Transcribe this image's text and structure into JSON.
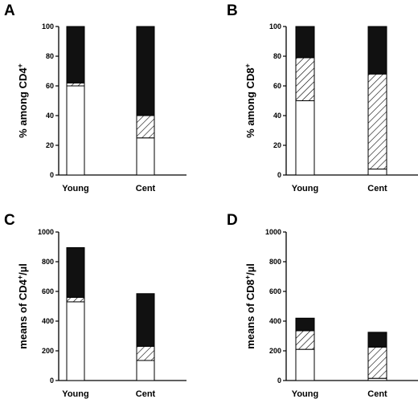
{
  "chart_data": [
    {
      "panel": "A",
      "type": "bar",
      "stacked": true,
      "categories": [
        "Young",
        "Cent"
      ],
      "ylabel": {
        "text": "% among CD4",
        "sup": "+"
      },
      "ylim": [
        0,
        100
      ],
      "yticks": [
        0,
        20,
        40,
        60,
        80,
        100
      ],
      "series": [
        {
          "pattern": "white",
          "values": [
            60,
            25
          ]
        },
        {
          "pattern": "hatched",
          "values": [
            2,
            15
          ]
        },
        {
          "pattern": "black",
          "values": [
            38,
            60
          ]
        }
      ]
    },
    {
      "panel": "B",
      "type": "bar",
      "stacked": true,
      "categories": [
        "Young",
        "Cent"
      ],
      "ylabel": {
        "text": "% among CD8",
        "sup": "+"
      },
      "ylim": [
        0,
        100
      ],
      "yticks": [
        0,
        20,
        40,
        60,
        80,
        100
      ],
      "series": [
        {
          "pattern": "white",
          "values": [
            50,
            4
          ]
        },
        {
          "pattern": "hatched",
          "values": [
            29,
            64
          ]
        },
        {
          "pattern": "black",
          "values": [
            21,
            32
          ]
        }
      ]
    },
    {
      "panel": "C",
      "type": "bar",
      "stacked": true,
      "categories": [
        "Young",
        "Cent"
      ],
      "ylabel": {
        "text": "means of CD4",
        "sup": "+",
        "suffix": "/µl"
      },
      "ylim": [
        0,
        1000
      ],
      "yticks": [
        0,
        200,
        400,
        600,
        800,
        1000
      ],
      "series": [
        {
          "pattern": "white",
          "values": [
            530,
            135
          ]
        },
        {
          "pattern": "hatched",
          "values": [
            30,
            95
          ]
        },
        {
          "pattern": "black",
          "values": [
            335,
            355
          ]
        }
      ]
    },
    {
      "panel": "D",
      "type": "bar",
      "stacked": true,
      "categories": [
        "Young",
        "Cent"
      ],
      "ylabel": {
        "text": "means of CD8",
        "sup": "+",
        "suffix": "/µl"
      },
      "ylim": [
        0,
        1000
      ],
      "yticks": [
        0,
        200,
        400,
        600,
        800,
        1000
      ],
      "series": [
        {
          "pattern": "white",
          "values": [
            210,
            15
          ]
        },
        {
          "pattern": "hatched",
          "values": [
            125,
            210
          ]
        },
        {
          "pattern": "black",
          "values": [
            85,
            100
          ]
        }
      ]
    }
  ]
}
